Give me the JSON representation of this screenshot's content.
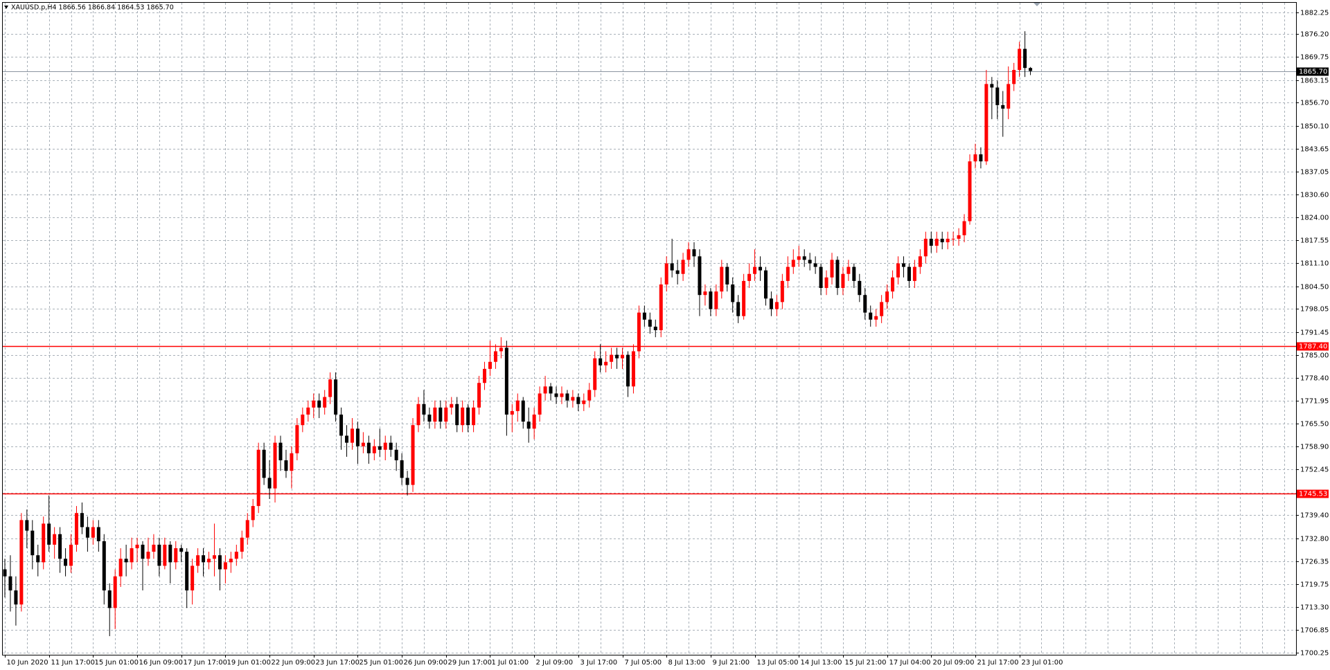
{
  "chart_data": {
    "type": "candlestick",
    "title": "XAUUSD.p,H4  1866.56 1866.84 1864.53 1865.70",
    "up_color": "#ff0000",
    "down_color": "#000000",
    "grid": true,
    "ylim": [
      1699.7,
      1885.1
    ],
    "yticks": [
      1882.25,
      {
        "value": 1876.2,
        "label": "1876.20"
      },
      1869.75,
      1863.15,
      {
        "value": 1856.7,
        "label": "1856.70"
      },
      {
        "value": 1850.1,
        "label": "1850.10"
      },
      1843.65,
      1837.05,
      {
        "value": 1830.6,
        "label": "1830.60"
      },
      {
        "value": 1824,
        "label": "1824.00"
      },
      1817.55,
      {
        "value": 1811.1,
        "label": "1811.10"
      },
      {
        "value": 1804.5,
        "label": "1804.50"
      },
      1798.05,
      1791.45,
      {
        "value": 1785,
        "label": "1785.00"
      },
      {
        "value": 1778.4,
        "label": "1778.40"
      },
      1771.95,
      {
        "value": 1765.5,
        "label": "1765.50"
      },
      {
        "value": 1758.9,
        "label": "1758.90"
      },
      1752.45,
      1745.85,
      {
        "value": 1739.4,
        "label": "1739.40"
      },
      {
        "value": 1732.8,
        "label": "1732.80"
      },
      1726.35,
      1719.75,
      {
        "value": 1713.3,
        "label": "1713.30"
      },
      1706.85,
      1700.25
    ],
    "levels": [
      {
        "value": 1787.4,
        "label": "1787.40",
        "color": "#ff0000"
      },
      {
        "value": 1745.53,
        "label": "1745.53",
        "color": "#ff0000"
      }
    ],
    "bid": {
      "value": 1865.7,
      "label": "1865.70",
      "color": "#000000"
    },
    "categories": [
      "10 Jun 2020",
      null,
      null,
      null,
      null,
      null,
      null,
      null,
      "11 Jun 17:00",
      null,
      null,
      null,
      null,
      null,
      null,
      null,
      "15 Jun 01:00",
      null,
      null,
      null,
      null,
      null,
      null,
      null,
      "16 Jun 09:00",
      null,
      null,
      null,
      null,
      null,
      null,
      null,
      "17 Jun 17:00",
      null,
      null,
      null,
      null,
      null,
      null,
      null,
      "19 Jun 01:00",
      null,
      null,
      null,
      null,
      null,
      null,
      null,
      "22 Jun 09:00",
      null,
      null,
      null,
      null,
      null,
      null,
      null,
      "23 Jun 17:00",
      null,
      null,
      null,
      null,
      null,
      null,
      null,
      "25 Jun 01:00",
      null,
      null,
      null,
      null,
      null,
      null,
      null,
      "26 Jun 09:00",
      null,
      null,
      null,
      null,
      null,
      null,
      null,
      "29 Jun 17:00",
      null,
      null,
      null,
      null,
      null,
      null,
      null,
      "1 Jul 01:00",
      null,
      null,
      null,
      null,
      null,
      null,
      null,
      "2 Jul 09:00",
      null,
      null,
      null,
      null,
      null,
      null,
      null,
      "3 Jul 17:00",
      null,
      null,
      null,
      null,
      null,
      null,
      null,
      "7 Jul 05:00",
      null,
      null,
      null,
      null,
      null,
      null,
      null,
      "8 Jul 13:00",
      null,
      null,
      null,
      null,
      null,
      null,
      null,
      "9 Jul 21:00",
      null,
      null,
      null,
      null,
      null,
      null,
      null,
      "13 Jul 05:00",
      null,
      null,
      null,
      null,
      null,
      null,
      null,
      "14 Jul 13:00",
      null,
      null,
      null,
      null,
      null,
      null,
      null,
      "15 Jul 21:00",
      null,
      null,
      null,
      null,
      null,
      null,
      null,
      "17 Jul 04:00",
      null,
      null,
      null,
      null,
      null,
      null,
      null,
      "20 Jul 09:00",
      null,
      null,
      null,
      null,
      null,
      null,
      null,
      "21 Jul 17:00",
      null,
      null,
      null,
      null,
      null,
      null,
      null,
      "23 Jul 01:00",
      null,
      null
    ],
    "ohlc": [
      [
        1724,
        1727,
        1716,
        1722
      ],
      [
        1722,
        1728,
        1712,
        1718
      ],
      [
        1718,
        1722,
        1708,
        1714
      ],
      [
        1714,
        1740,
        1712,
        1738
      ],
      [
        1738,
        1741,
        1730,
        1735
      ],
      [
        1735,
        1738,
        1724,
        1728
      ],
      [
        1728,
        1731,
        1722,
        1726
      ],
      [
        1726,
        1739,
        1724,
        1737
      ],
      [
        1737,
        1745,
        1729,
        1731
      ],
      [
        1731,
        1736,
        1727,
        1734
      ],
      [
        1734,
        1736,
        1723,
        1727
      ],
      [
        1727,
        1730,
        1722,
        1725
      ],
      [
        1725,
        1734,
        1723,
        1731
      ],
      [
        1731,
        1742,
        1729,
        1740
      ],
      [
        1740,
        1743,
        1734,
        1736
      ],
      [
        1736,
        1739,
        1729,
        1733
      ],
      [
        1733,
        1738,
        1731,
        1736
      ],
      [
        1736,
        1738,
        1729,
        1732
      ],
      [
        1732,
        1734,
        1714,
        1718
      ],
      [
        1718,
        1720,
        1705,
        1713
      ],
      [
        1713,
        1724,
        1707,
        1722
      ],
      [
        1722,
        1730,
        1719,
        1727
      ],
      [
        1727,
        1731,
        1722,
        1726
      ],
      [
        1726,
        1733,
        1724,
        1730
      ],
      [
        1730,
        1733,
        1726,
        1731
      ],
      [
        1731,
        1732,
        1718,
        1727
      ],
      [
        1727,
        1733,
        1725,
        1729
      ],
      [
        1729,
        1734,
        1727,
        1731
      ],
      [
        1731,
        1733,
        1722,
        1725
      ],
      [
        1725,
        1733,
        1724,
        1731
      ],
      [
        1731,
        1732,
        1720,
        1726
      ],
      [
        1726,
        1732,
        1724,
        1730
      ],
      [
        1730,
        1731,
        1726,
        1729
      ],
      [
        1729,
        1730,
        1713,
        1718
      ],
      [
        1718,
        1727,
        1714,
        1725
      ],
      [
        1725,
        1730,
        1723,
        1728
      ],
      [
        1728,
        1730,
        1722,
        1726
      ],
      [
        1726,
        1729,
        1724,
        1727
      ],
      [
        1727,
        1737,
        1722,
        1728
      ],
      [
        1728,
        1730,
        1718,
        1724
      ],
      [
        1724,
        1728,
        1720,
        1726
      ],
      [
        1726,
        1729,
        1723,
        1727
      ],
      [
        1727,
        1731,
        1725,
        1729
      ],
      [
        1729,
        1735,
        1727,
        1733
      ],
      [
        1733,
        1740,
        1731,
        1738
      ],
      [
        1738,
        1744,
        1736,
        1742
      ],
      [
        1742,
        1760,
        1740,
        1758
      ],
      [
        1758,
        1760,
        1748,
        1750
      ],
      [
        1750,
        1755,
        1744,
        1747
      ],
      [
        1747,
        1762,
        1743,
        1760
      ],
      [
        1760,
        1762,
        1752,
        1755
      ],
      [
        1755,
        1758,
        1750,
        1752
      ],
      [
        1752,
        1759,
        1747,
        1757
      ],
      [
        1757,
        1767,
        1755,
        1765
      ],
      [
        1765,
        1770,
        1763,
        1768
      ],
      [
        1768,
        1772,
        1766,
        1770
      ],
      [
        1770,
        1774,
        1767,
        1772
      ],
      [
        1772,
        1774,
        1767,
        1770
      ],
      [
        1770,
        1775,
        1768,
        1773
      ],
      [
        1773,
        1780,
        1771,
        1778
      ],
      [
        1778,
        1780,
        1766,
        1768
      ],
      [
        1768,
        1770,
        1758,
        1762
      ],
      [
        1762,
        1765,
        1756,
        1760
      ],
      [
        1760,
        1767,
        1758,
        1764
      ],
      [
        1764,
        1766,
        1754,
        1759
      ],
      [
        1759,
        1763,
        1757,
        1760
      ],
      [
        1760,
        1762,
        1754,
        1757
      ],
      [
        1757,
        1761,
        1755,
        1759
      ],
      [
        1759,
        1764,
        1756,
        1758
      ],
      [
        1758,
        1762,
        1755,
        1760
      ],
      [
        1760,
        1762,
        1756,
        1758
      ],
      [
        1758,
        1760,
        1752,
        1755
      ],
      [
        1755,
        1757,
        1748,
        1750
      ],
      [
        1750,
        1752,
        1745,
        1748
      ],
      [
        1748,
        1767,
        1746,
        1765
      ],
      [
        1765,
        1773,
        1763,
        1771
      ],
      [
        1771,
        1775,
        1766,
        1768
      ],
      [
        1768,
        1770,
        1764,
        1766
      ],
      [
        1766,
        1772,
        1764,
        1770
      ],
      [
        1770,
        1772,
        1764,
        1766
      ],
      [
        1766,
        1772,
        1764,
        1770
      ],
      [
        1770,
        1773,
        1768,
        1771
      ],
      [
        1771,
        1773,
        1763,
        1765
      ],
      [
        1765,
        1772,
        1763,
        1770
      ],
      [
        1770,
        1771,
        1763,
        1765
      ],
      [
        1765,
        1772,
        1763,
        1770
      ],
      [
        1770,
        1779,
        1768,
        1777
      ],
      [
        1777,
        1783,
        1775,
        1781
      ],
      [
        1781,
        1789,
        1779,
        1783
      ],
      [
        1783,
        1788,
        1781,
        1786
      ],
      [
        1786,
        1790,
        1784,
        1787
      ],
      [
        1787,
        1789,
        1762,
        1768
      ],
      [
        1768,
        1771,
        1763,
        1769
      ],
      [
        1769,
        1774,
        1766,
        1772
      ],
      [
        1772,
        1773,
        1764,
        1766
      ],
      [
        1766,
        1770,
        1760,
        1764
      ],
      [
        1764,
        1770,
        1761,
        1768
      ],
      [
        1768,
        1776,
        1766,
        1774
      ],
      [
        1774,
        1779,
        1772,
        1776
      ],
      [
        1776,
        1777,
        1772,
        1774
      ],
      [
        1774,
        1776,
        1771,
        1773
      ],
      [
        1773,
        1776,
        1771,
        1774
      ],
      [
        1774,
        1775,
        1770,
        1772
      ],
      [
        1772,
        1775,
        1770,
        1773
      ],
      [
        1773,
        1774,
        1769,
        1771
      ],
      [
        1771,
        1774,
        1769,
        1772
      ],
      [
        1772,
        1777,
        1770,
        1775
      ],
      [
        1775,
        1786,
        1773,
        1784
      ],
      [
        1784,
        1788,
        1780,
        1782
      ],
      [
        1782,
        1786,
        1780,
        1783
      ],
      [
        1783,
        1787,
        1781,
        1785
      ],
      [
        1785,
        1787,
        1781,
        1784
      ],
      [
        1784,
        1787,
        1781,
        1785
      ],
      [
        1785,
        1786,
        1773,
        1776
      ],
      [
        1776,
        1788,
        1774,
        1786
      ],
      [
        1786,
        1799,
        1784,
        1797
      ],
      [
        1797,
        1799,
        1793,
        1795
      ],
      [
        1795,
        1797,
        1791,
        1793
      ],
      [
        1793,
        1795,
        1790,
        1792
      ],
      [
        1792,
        1807,
        1790,
        1805
      ],
      [
        1805,
        1813,
        1803,
        1811
      ],
      [
        1811,
        1818,
        1807,
        1809
      ],
      [
        1809,
        1812,
        1805,
        1808
      ],
      [
        1808,
        1814,
        1806,
        1812
      ],
      [
        1812,
        1817,
        1810,
        1815
      ],
      [
        1815,
        1817,
        1810,
        1813
      ],
      [
        1813,
        1815,
        1796,
        1802
      ],
      [
        1802,
        1805,
        1799,
        1803
      ],
      [
        1803,
        1804,
        1796,
        1798
      ],
      [
        1798,
        1805,
        1796,
        1803
      ],
      [
        1803,
        1812,
        1801,
        1810
      ],
      [
        1810,
        1811,
        1803,
        1805
      ],
      [
        1805,
        1807,
        1797,
        1800
      ],
      [
        1800,
        1802,
        1794,
        1796
      ],
      [
        1796,
        1808,
        1795,
        1806
      ],
      [
        1806,
        1811,
        1804,
        1808
      ],
      [
        1808,
        1815,
        1806,
        1810
      ],
      [
        1810,
        1813,
        1806,
        1809
      ],
      [
        1809,
        1810,
        1799,
        1801
      ],
      [
        1801,
        1803,
        1796,
        1798
      ],
      [
        1798,
        1802,
        1796,
        1800
      ],
      [
        1800,
        1808,
        1798,
        1806
      ],
      [
        1806,
        1813,
        1804,
        1810
      ],
      [
        1810,
        1815,
        1808,
        1812
      ],
      [
        1812,
        1816,
        1810,
        1813
      ],
      [
        1813,
        1815,
        1810,
        1812
      ],
      [
        1812,
        1814,
        1809,
        1811
      ],
      [
        1811,
        1813,
        1808,
        1810
      ],
      [
        1810,
        1811,
        1802,
        1804
      ],
      [
        1804,
        1809,
        1802,
        1807
      ],
      [
        1807,
        1814,
        1805,
        1812
      ],
      [
        1812,
        1813,
        1802,
        1804
      ],
      [
        1804,
        1810,
        1802,
        1808
      ],
      [
        1808,
        1812,
        1806,
        1810
      ],
      [
        1810,
        1811,
        1804,
        1806
      ],
      [
        1806,
        1808,
        1800,
        1802
      ],
      [
        1802,
        1804,
        1795,
        1797
      ],
      [
        1797,
        1799,
        1793,
        1795
      ],
      [
        1795,
        1798,
        1793,
        1796
      ],
      [
        1796,
        1802,
        1794,
        1800
      ],
      [
        1800,
        1805,
        1798,
        1803
      ],
      [
        1803,
        1809,
        1801,
        1807
      ],
      [
        1807,
        1813,
        1805,
        1811
      ],
      [
        1811,
        1813,
        1807,
        1810
      ],
      [
        1810,
        1811,
        1804,
        1806
      ],
      [
        1806,
        1812,
        1804,
        1810
      ],
      [
        1810,
        1815,
        1808,
        1813
      ],
      [
        1813,
        1820,
        1811,
        1818
      ],
      [
        1818,
        1820,
        1814,
        1816
      ],
      [
        1816,
        1820,
        1814,
        1818
      ],
      [
        1818,
        1820,
        1815,
        1817
      ],
      [
        1817,
        1820,
        1815,
        1818
      ],
      [
        1818,
        1820,
        1816,
        1818
      ],
      [
        1818,
        1821,
        1816,
        1819
      ],
      [
        1819,
        1825,
        1817,
        1823
      ],
      [
        1823,
        1842,
        1822,
        1840
      ],
      [
        1840,
        1845,
        1838,
        1842
      ],
      [
        1842,
        1844,
        1838,
        1840
      ],
      [
        1840,
        1866,
        1839,
        1862
      ],
      [
        1862,
        1864,
        1852,
        1861
      ],
      [
        1861,
        1863,
        1852,
        1856
      ],
      [
        1856,
        1860,
        1847,
        1855
      ],
      [
        1855,
        1867,
        1852,
        1862
      ],
      [
        1862,
        1868,
        1860,
        1866
      ],
      [
        1866,
        1874,
        1864,
        1872
      ],
      [
        1872,
        1877,
        1864,
        1866.56
      ],
      [
        1866.56,
        1866.84,
        1864.53,
        1865.7
      ]
    ]
  }
}
